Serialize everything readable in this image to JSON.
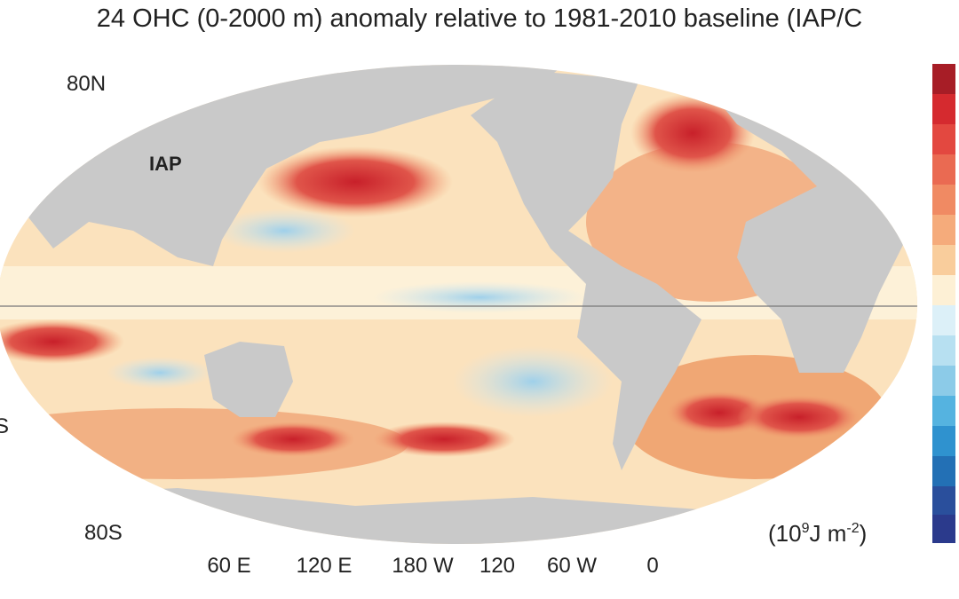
{
  "title": "24 OHC (0-2000 m) anomaly relative to 1981-2010 baseline (IAP/C",
  "map": {
    "lat_labels": [
      "80N",
      "S",
      "80S"
    ],
    "source_label": "IAP",
    "lon_labels": [
      "60 E",
      "120 E",
      "180 W",
      "120",
      "60 W",
      "0"
    ]
  },
  "unit": {
    "open": "(10",
    "exp1": "9",
    "mid": "J m",
    "exp2": "-2",
    "close": ")"
  }
}
